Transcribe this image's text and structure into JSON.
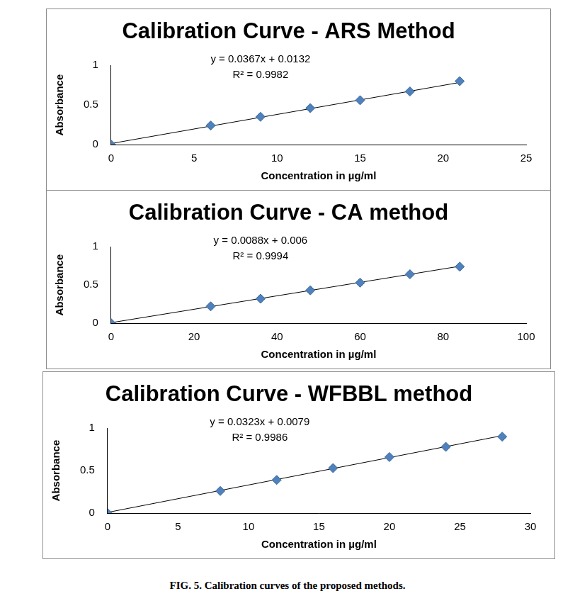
{
  "chart_data": [
    {
      "type": "scatter",
      "title": "Calibration Curve - ARS Method",
      "x_label": "Concentration in µg/ml",
      "y_label": "Absorbance",
      "annotations": [
        "y = 0.0367x + 0.0132",
        "R² = 0.9982"
      ],
      "series": [
        {
          "type": "scatter",
          "marker": "diamond",
          "color": "#4f81bd",
          "x": [
            0,
            6,
            9,
            12,
            15,
            18,
            21
          ],
          "values": [
            0,
            0.24,
            0.35,
            0.46,
            0.56,
            0.67,
            0.8
          ]
        },
        {
          "type": "line",
          "line_style": "solid",
          "color": "#000000",
          "x": [
            0,
            21
          ],
          "values": [
            0.0132,
            0.784
          ]
        }
      ],
      "xlim": [
        0,
        25
      ],
      "xticks": [
        0,
        5,
        10,
        15,
        20,
        25
      ],
      "ylim": [
        0,
        1
      ],
      "yticks": [
        0,
        0.5,
        1
      ],
      "grid": false
    },
    {
      "type": "scatter",
      "title": "Calibration Curve - CA method",
      "x_label": "Concentration in µg/ml",
      "y_label": "Absorbance",
      "annotations": [
        "y = 0.0088x + 0.006",
        "R² = 0.9994"
      ],
      "series": [
        {
          "type": "scatter",
          "marker": "diamond",
          "color": "#4f81bd",
          "x": [
            0,
            24,
            36,
            48,
            60,
            72,
            84
          ],
          "values": [
            0,
            0.22,
            0.32,
            0.43,
            0.53,
            0.64,
            0.74
          ]
        },
        {
          "type": "line",
          "line_style": "solid",
          "color": "#000000",
          "x": [
            0,
            84
          ],
          "values": [
            0.006,
            0.745
          ]
        }
      ],
      "xlim": [
        0,
        100
      ],
      "xticks": [
        0,
        20,
        40,
        60,
        80,
        100
      ],
      "ylim": [
        0,
        1
      ],
      "yticks": [
        0,
        0.5,
        1
      ],
      "grid": false
    },
    {
      "type": "scatter",
      "title": "Calibration Curve - WFBBL method",
      "x_label": "Concentration in µg/ml",
      "y_label": "Absorbance",
      "annotations": [
        "y = 0.0323x + 0.0079",
        "R² = 0.9986"
      ],
      "series": [
        {
          "type": "scatter",
          "marker": "diamond",
          "color": "#4f81bd",
          "x": [
            0,
            8,
            12,
            16,
            20,
            24,
            28
          ],
          "values": [
            0,
            0.26,
            0.39,
            0.53,
            0.66,
            0.78,
            0.9
          ]
        },
        {
          "type": "line",
          "line_style": "solid",
          "color": "#000000",
          "x": [
            0,
            28
          ],
          "values": [
            0.0079,
            0.912
          ]
        }
      ],
      "xlim": [
        0,
        30
      ],
      "xticks": [
        0,
        5,
        10,
        15,
        20,
        25,
        30
      ],
      "ylim": [
        0,
        1
      ],
      "yticks": [
        0,
        0.5,
        1
      ],
      "grid": false
    }
  ],
  "caption": "FIG. 5. Calibration curves of the proposed methods."
}
